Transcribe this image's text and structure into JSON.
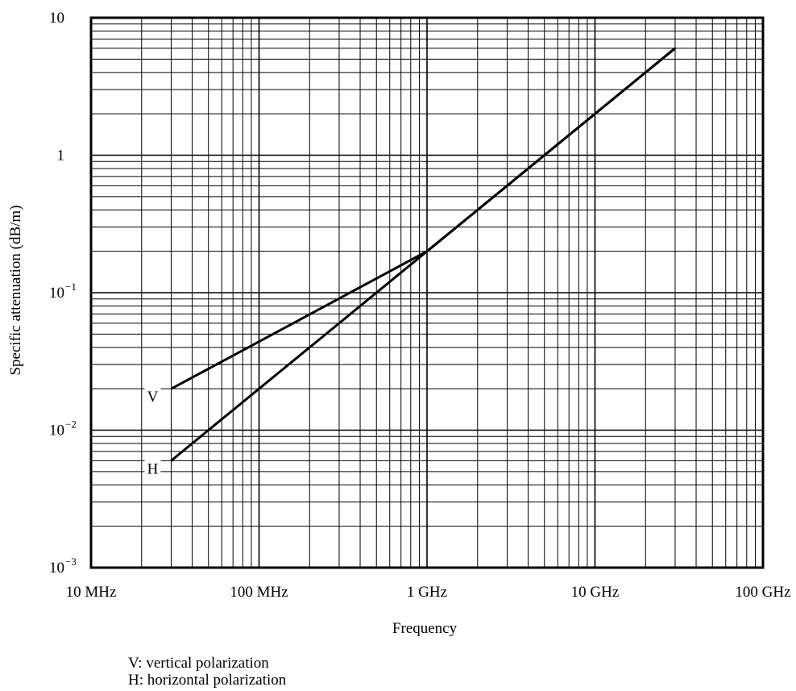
{
  "chart_data": {
    "type": "line",
    "title": "",
    "xlabel": "Frequency",
    "ylabel": "Specific attenuation (dB/m)",
    "xscale": "log",
    "yscale": "log",
    "xlim": [
      10,
      100000
    ],
    "ylim": [
      0.001,
      10
    ],
    "x_unit": "MHz",
    "x_ticks": [
      {
        "value": 10,
        "label": "10 MHz"
      },
      {
        "value": 100,
        "label": "100 MHz"
      },
      {
        "value": 1000,
        "label": "1 GHz"
      },
      {
        "value": 10000,
        "label": "10 GHz"
      },
      {
        "value": 100000,
        "label": "100 GHz"
      }
    ],
    "y_ticks": [
      {
        "value": 0.001,
        "base": "10",
        "exp": "−3"
      },
      {
        "value": 0.01,
        "base": "10",
        "exp": "−2"
      },
      {
        "value": 0.1,
        "base": "10",
        "exp": "−1"
      },
      {
        "value": 1,
        "base": "1",
        "exp": ""
      },
      {
        "value": 10,
        "base": "10",
        "exp": ""
      }
    ],
    "grid": true,
    "series": [
      {
        "name": "V",
        "color": "#000000",
        "points": [
          [
            30,
            0.02
          ],
          [
            1000,
            0.2
          ],
          [
            30000,
            6
          ]
        ]
      },
      {
        "name": "H",
        "color": "#000000",
        "points": [
          [
            30,
            0.006
          ],
          [
            1000,
            0.2
          ],
          [
            30000,
            6
          ]
        ]
      }
    ],
    "legend": [
      "V: vertical polarization",
      "H: horizontal polarization"
    ]
  }
}
